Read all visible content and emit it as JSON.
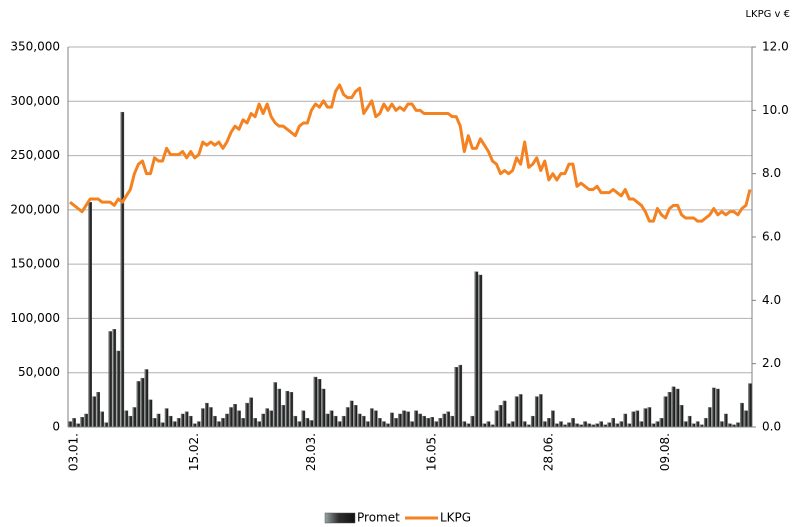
{
  "chart_data": {
    "type": "bar-line",
    "y2_label": "LKPG v €",
    "categories": [
      null,
      "03.01.",
      null,
      null,
      null,
      null,
      null,
      null,
      null,
      null,
      null,
      null,
      null,
      null,
      null,
      null,
      null,
      null,
      null,
      null,
      null,
      null,
      null,
      null,
      null,
      null,
      null,
      null,
      null,
      null,
      null,
      "15.02.",
      null,
      null,
      null,
      null,
      null,
      null,
      null,
      null,
      null,
      null,
      null,
      null,
      null,
      null,
      null,
      null,
      null,
      null,
      null,
      null,
      null,
      null,
      null,
      null,
      null,
      null,
      null,
      null,
      "28.03.",
      null,
      null,
      null,
      null,
      null,
      null,
      null,
      null,
      null,
      null,
      null,
      null,
      null,
      null,
      null,
      null,
      null,
      null,
      null,
      null,
      null,
      null,
      null,
      null,
      null,
      null,
      null,
      null,
      null,
      "16.05.",
      null,
      null,
      null,
      null,
      null,
      null,
      null,
      null,
      null,
      null,
      null,
      null,
      null,
      null,
      null,
      null,
      null,
      null,
      null,
      null,
      null,
      null,
      null,
      null,
      null,
      null,
      null,
      null,
      "28.06.",
      null,
      null,
      null,
      null,
      null,
      null,
      null,
      null,
      null,
      null,
      null,
      null,
      null,
      null,
      null,
      null,
      null,
      null,
      null,
      null,
      null,
      null,
      null,
      null,
      null,
      null,
      null,
      null,
      "09.08.",
      null,
      null,
      null,
      null,
      null,
      null,
      null,
      null,
      null,
      null,
      null,
      null,
      null,
      null,
      null,
      null,
      null,
      null,
      null,
      null,
      null
    ],
    "series": [
      {
        "name": "Promet",
        "color": "#2f2f2f",
        "values": [
          5000,
          8000,
          3000,
          9000,
          12000,
          207000,
          28000,
          32000,
          14000,
          4000,
          88000,
          90000,
          70000,
          290000,
          15000,
          10000,
          18000,
          42000,
          45000,
          53000,
          25000,
          8000,
          12000,
          4000,
          17000,
          10000,
          5000,
          8000,
          12000,
          14000,
          10000,
          3000,
          5000,
          17000,
          22000,
          18000,
          10000,
          5000,
          8000,
          12000,
          18000,
          21000,
          15000,
          8000,
          22000,
          27000,
          8000,
          5000,
          12000,
          17000,
          15000,
          41000,
          35000,
          20000,
          33000,
          32000,
          10000,
          5000,
          15000,
          8000,
          6000,
          46000,
          44000,
          35000,
          12000,
          15000,
          10000,
          5000,
          10000,
          18000,
          24000,
          20000,
          12000,
          10000,
          5000,
          17000,
          15000,
          8000,
          5000,
          3000,
          13000,
          8000,
          12000,
          15000,
          14000,
          5000,
          15000,
          12000,
          10000,
          8000,
          9000,
          5000,
          8000,
          12000,
          14000,
          10000,
          55000,
          57000,
          5000,
          3000,
          10000,
          143000,
          140000,
          3000,
          5000,
          2000,
          15000,
          20000,
          24000,
          3000,
          5000,
          28000,
          30000,
          5000,
          2000,
          10000,
          28000,
          30000,
          5000,
          8000,
          15000,
          3000,
          5000,
          2000,
          4000,
          8000,
          3000,
          2000,
          5000,
          3000,
          2000,
          3000,
          5000,
          2000,
          4000,
          8000,
          3000,
          5000,
          12000,
          3000,
          14000,
          15000,
          5000,
          17000,
          18000,
          3000,
          5000,
          8000,
          28000,
          32000,
          37000,
          35000,
          20000,
          5000,
          10000,
          3000,
          5000,
          2000,
          8000,
          18000,
          36000,
          35000,
          5000,
          12000,
          3000,
          2000,
          4000,
          22000,
          15000,
          40000
        ]
      },
      {
        "name": "LKPG",
        "color": "#f58220",
        "axis": "y2",
        "values": [
          7.1,
          7.0,
          6.9,
          6.8,
          7.0,
          7.2,
          7.2,
          7.2,
          7.1,
          7.1,
          7.1,
          7.0,
          7.2,
          7.1,
          7.3,
          7.5,
          8.0,
          8.3,
          8.4,
          8.0,
          8.0,
          8.5,
          8.4,
          8.4,
          8.8,
          8.6,
          8.6,
          8.6,
          8.7,
          8.5,
          8.7,
          8.5,
          8.6,
          9.0,
          8.9,
          9.0,
          8.9,
          9.0,
          8.8,
          9.0,
          9.3,
          9.5,
          9.4,
          9.7,
          9.6,
          9.9,
          9.8,
          10.2,
          9.9,
          10.2,
          9.8,
          9.6,
          9.5,
          9.5,
          9.4,
          9.3,
          9.2,
          9.5,
          9.6,
          9.6,
          10.0,
          10.2,
          10.1,
          10.3,
          10.1,
          10.1,
          10.6,
          10.8,
          10.5,
          10.4,
          10.4,
          10.6,
          10.7,
          9.9,
          10.1,
          10.3,
          9.8,
          9.9,
          10.2,
          10.0,
          10.2,
          10.0,
          10.1,
          10.0,
          10.2,
          10.2,
          10.0,
          10.0,
          9.9,
          9.9,
          9.9,
          9.9,
          9.9,
          9.9,
          9.9,
          9.8,
          9.8,
          9.5,
          8.7,
          9.2,
          8.8,
          8.8,
          9.1,
          8.9,
          8.7,
          8.4,
          8.3,
          8.0,
          8.1,
          8.0,
          8.1,
          8.5,
          8.3,
          9.0,
          8.2,
          8.3,
          8.5,
          8.1,
          8.4,
          7.8,
          8.0,
          7.8,
          8.0,
          8.0,
          8.3,
          8.3,
          7.6,
          7.7,
          7.6,
          7.5,
          7.5,
          7.6,
          7.4,
          7.4,
          7.4,
          7.5,
          7.4,
          7.3,
          7.5,
          7.2,
          7.2,
          7.1,
          7.0,
          6.8,
          6.5,
          6.5,
          6.9,
          6.7,
          6.6,
          6.9,
          7.0,
          7.0,
          6.7,
          6.6,
          6.6,
          6.6,
          6.5,
          6.5,
          6.6,
          6.7,
          6.9,
          6.7,
          6.8,
          6.7,
          6.8,
          6.8,
          6.7,
          6.9,
          7.0,
          7.5
        ]
      }
    ],
    "ylim": [
      0,
      350000
    ],
    "yticks": [
      0,
      {
        "value": 50000,
        "label": "50,000"
      },
      {
        "value": 100000,
        "label": "100,000"
      },
      {
        "value": 150000,
        "label": "150,000"
      },
      {
        "value": 200000,
        "label": "200,000"
      },
      {
        "value": 250000,
        "label": "250,000"
      },
      {
        "value": 300000,
        "label": "300,000"
      },
      {
        "value": 350000,
        "label": "350,000"
      }
    ],
    "y2lim": [
      0,
      12
    ],
    "y2ticks": [
      {
        "value": 0,
        "label": "0.0"
      },
      {
        "value": 2,
        "label": "2.0"
      },
      {
        "value": 4,
        "label": "4.0"
      },
      {
        "value": 6,
        "label": "6.0"
      },
      {
        "value": 8,
        "label": "8.0"
      },
      {
        "value": 10,
        "label": "10.0"
      },
      {
        "value": 12,
        "label": "12.0"
      }
    ],
    "grid": true,
    "legend": "bottom"
  }
}
